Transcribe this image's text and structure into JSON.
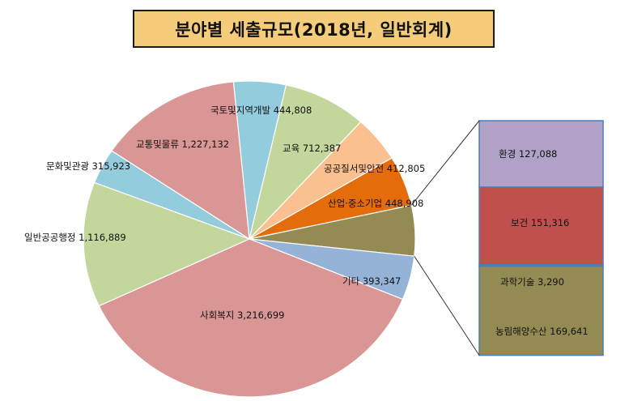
{
  "chart_data": {
    "type": "pie",
    "title": "분야별 세출규모(2018년, 일반회계)",
    "pie": {
      "slices": [
        {
          "name": "국토및지역개발",
          "value": 444808,
          "color": "#93cddd"
        },
        {
          "name": "교육",
          "value": 712387,
          "color": "#c3d69b"
        },
        {
          "name": "공공질서및안전",
          "value": 412805,
          "color": "#fac090"
        },
        {
          "name": "산업·중소기업",
          "value": 448908,
          "color": "#e46c0a"
        },
        {
          "name": "기타 (분해)",
          "value": 451335,
          "color": "#948a54"
        },
        {
          "name": "기타",
          "value": 393347,
          "color": "#95b3d7"
        },
        {
          "name": "사회복지",
          "value": 3216699,
          "color": "#d99694"
        },
        {
          "name": "일반공공행정",
          "value": 1116889,
          "color": "#c3d69b"
        },
        {
          "name": "문화및관광",
          "value": 315923,
          "color": "#93cddd"
        },
        {
          "name": "교통및물류",
          "value": 1227132,
          "color": "#d99694"
        }
      ]
    },
    "breakout": [
      {
        "name": "환경",
        "value": 127088,
        "color": "#b2a1c7"
      },
      {
        "name": "보건",
        "value": 151316,
        "color": "#c0504d"
      },
      {
        "name": "과학기술",
        "value": 3290,
        "color": "#948a54"
      },
      {
        "name": "농림해양수산",
        "value": 169641,
        "color": "#948a54"
      }
    ],
    "labels": {
      "s0": "국토및지역개발 444,808",
      "s1": "교육 712,387",
      "s2": "공공질서및안전 412,805",
      "s3": "산업·중소기업 448,908",
      "s5": "기타 393,347",
      "s6": "사회복지 3,216,699",
      "s7": "일반공공행정 1,116,889",
      "s8": "문화및관광 315,923",
      "s9": "교통및물류 1,227,132",
      "b0": "환경 127,088",
      "b1": "보건 151,316",
      "b2": "과학기술 3,290",
      "b3": "농림해양수산 169,641"
    }
  }
}
